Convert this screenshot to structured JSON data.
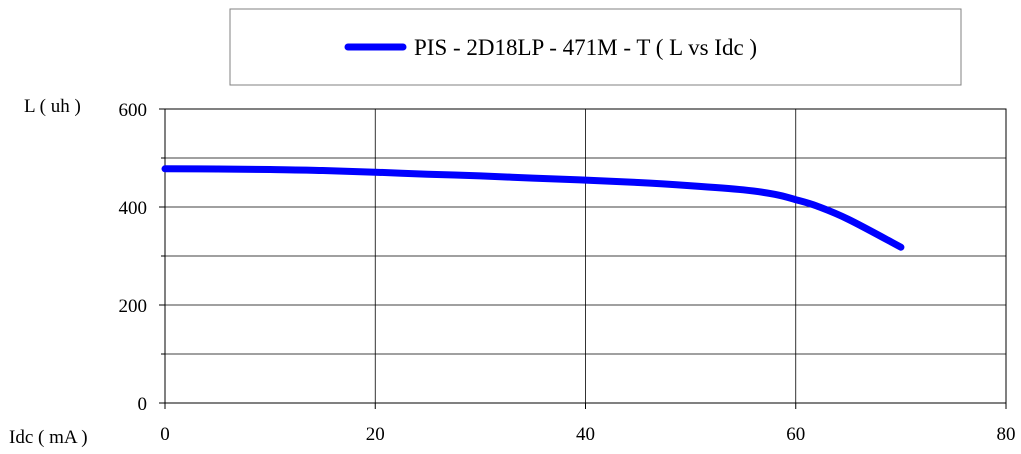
{
  "chart_data": {
    "type": "line",
    "title": "",
    "xlabel": "Idc ( mA )",
    "ylabel": "L ( uh )",
    "xlim": [
      0,
      80
    ],
    "ylim": [
      0,
      600
    ],
    "x_ticks": [
      0,
      20,
      40,
      60,
      80
    ],
    "y_ticks": [
      0,
      200,
      400,
      600
    ],
    "x_tick_labels": [
      "0",
      "20",
      "40",
      "60",
      "80"
    ],
    "y_tick_labels": [
      "0",
      "200",
      "400",
      "600"
    ],
    "x_minor_gridlines": [],
    "y_gridlines": [
      0,
      100,
      200,
      300,
      400,
      500,
      600
    ],
    "x_gridlines": [
      0,
      20,
      40,
      60,
      80
    ],
    "grid": true,
    "legend_position": "top",
    "series": [
      {
        "name": "PIS - 2D18LP - 471M - T ( L vs Idc )",
        "color": "#0000ff",
        "x": [
          0,
          5,
          10,
          15,
          20,
          25,
          30,
          35,
          40,
          45,
          50,
          55,
          58,
          60,
          62,
          65,
          70
        ],
        "y": [
          478,
          477.5,
          476.5,
          474.5,
          471,
          467,
          463.5,
          459,
          455,
          450,
          443.5,
          435,
          426,
          415,
          402,
          375,
          318
        ]
      }
    ]
  }
}
